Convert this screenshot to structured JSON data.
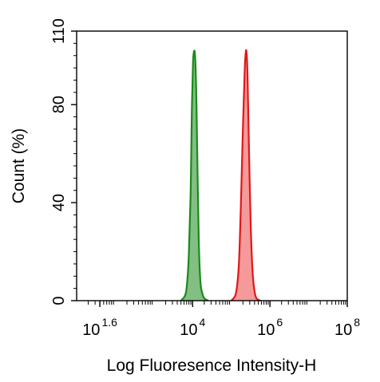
{
  "chart_data": {
    "type": "area",
    "title": "",
    "xlabel": "Log Fluoresence Intensity-H",
    "ylabel": "Count  (%)",
    "x_scale": "log",
    "xlim": [
      10,
      100000000
    ],
    "ylim": [
      0,
      110
    ],
    "x_ticks": [
      {
        "base": "10",
        "exp": "1.6",
        "value": 39.81
      },
      {
        "base": "10",
        "exp": "4",
        "value": 10000
      },
      {
        "base": "10",
        "exp": "6",
        "value": 1000000
      },
      {
        "base": "10",
        "exp": "8",
        "value": 100000000
      }
    ],
    "y_ticks": [
      {
        "label": "0",
        "value": 0
      },
      {
        "label": "40",
        "value": 40
      },
      {
        "label": "80",
        "value": 80
      },
      {
        "label": "110",
        "value": 110
      }
    ],
    "grid": false,
    "legend": "none",
    "series": [
      {
        "color": "#1a8a1a",
        "fill": "#5aa85a",
        "x": [
          5000,
          6310,
          7079,
          7943,
          8913,
          9550,
          10233,
          10965,
          11749,
          12589,
          13490,
          14454,
          15849,
          17783,
          19953,
          25119
        ],
        "y": [
          0,
          2,
          6,
          18,
          45,
          78,
          97,
          102,
          98,
          80,
          50,
          24,
          8,
          3,
          1,
          0
        ]
      },
      {
        "color": "#e01818",
        "fill": "#f07878",
        "x": [
          100000,
          125893,
          141254,
          158489,
          177828,
          199526,
          223872,
          239883,
          251189,
          263027,
          281838,
          316228,
          354813,
          398107,
          446684,
          562341
        ],
        "y": [
          0,
          2,
          6,
          16,
          40,
          70,
          95,
          102,
          100,
          92,
          68,
          32,
          12,
          4,
          1,
          0
        ]
      }
    ]
  }
}
